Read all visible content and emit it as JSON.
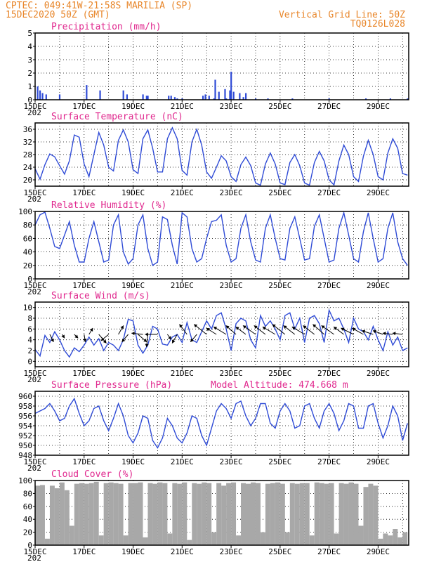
{
  "header": {
    "line1_left": "CPTEC:  049:41W-21:58S  MARILIA (SP)",
    "line2_left": "15DEC2020 50Z (GMT)",
    "line1_right": "Vertical Grid Line: 50Z",
    "line2_right": "TQ0126L028"
  },
  "colors": {
    "series": "#2f4bd6",
    "title": "#e0288e",
    "header": "#e8862a",
    "cloud": "#a8a8a8"
  },
  "chart_data": [
    {
      "type": "bar",
      "title": "Precipitation (mm/h)",
      "ylim": [
        0,
        5
      ],
      "yticks": [
        0,
        1,
        2,
        3,
        4,
        5
      ],
      "x_start_label": "15DEC",
      "x_cut_label": "202",
      "xticks": [
        "15DEC",
        "17DEC",
        "19DEC",
        "21DEC",
        "23DEC",
        "25DEC",
        "27DEC",
        "29DEC"
      ],
      "x": [
        0.1,
        0.2,
        0.3,
        0.45,
        1.0,
        2.1,
        2.65,
        3.6,
        3.75,
        4.4,
        4.55,
        4.6,
        5.45,
        5.55,
        5.7,
        5.8,
        6.0,
        6.85,
        6.95,
        7.1,
        7.3,
        7.35,
        7.5,
        7.75,
        7.8,
        7.95,
        8.0,
        8.1,
        8.35,
        8.5,
        8.6,
        9.0,
        9.5,
        10.5,
        12.0,
        13.5,
        14.5,
        15.2
      ],
      "values": [
        1.0,
        0.7,
        0.5,
        0.4,
        0.4,
        1.1,
        0.7,
        0.7,
        0.4,
        0.4,
        0.3,
        0.3,
        0.3,
        0.3,
        0.2,
        0.1,
        0.1,
        0.3,
        0.4,
        0.3,
        0.1,
        1.5,
        0.6,
        0.8,
        0.1,
        0.7,
        2.1,
        0.6,
        0.5,
        0.2,
        0.5,
        0.1,
        0.1,
        0.1,
        0.1,
        0.1,
        0.1,
        0.1
      ]
    },
    {
      "type": "line",
      "title": "Surface Temperature (nC)",
      "ylim": [
        18,
        38
      ],
      "yticks": [
        20,
        24,
        28,
        32,
        36
      ],
      "x_start_label": "15DEC",
      "x_cut_label": "202",
      "xticks": [
        "15DEC",
        "17DEC",
        "19DEC",
        "21DEC",
        "23DEC",
        "25DEC",
        "27DEC",
        "29DEC"
      ],
      "x": [
        0,
        0.2,
        0.4,
        0.6,
        0.8,
        1.0,
        1.2,
        1.4,
        1.6,
        1.8,
        2.0,
        2.2,
        2.4,
        2.6,
        2.8,
        3.0,
        3.2,
        3.4,
        3.6,
        3.8,
        4.0,
        4.2,
        4.4,
        4.6,
        4.8,
        5.0,
        5.2,
        5.4,
        5.6,
        5.8,
        6.0,
        6.2,
        6.4,
        6.6,
        6.8,
        7.0,
        7.2,
        7.4,
        7.6,
        7.8,
        8.0,
        8.2,
        8.4,
        8.6,
        8.8,
        9.0,
        9.2,
        9.4,
        9.6,
        9.8,
        10.0,
        10.2,
        10.4,
        10.6,
        10.8,
        11.0,
        11.2,
        11.4,
        11.6,
        11.8,
        12.0,
        12.2,
        12.4,
        12.6,
        12.8,
        13.0,
        13.2,
        13.4,
        13.6,
        13.8,
        14.0,
        14.2,
        14.4,
        14.6,
        14.8,
        15.0,
        15.2
      ],
      "values": [
        23.5,
        20.2,
        24.8,
        28.2,
        27.3,
        24.5,
        21.8,
        26.0,
        34.2,
        33.5,
        25.0,
        21.0,
        28.0,
        35.0,
        31.0,
        24.0,
        22.8,
        32.5,
        35.8,
        32.0,
        23.2,
        22.0,
        33.0,
        35.8,
        30.0,
        22.5,
        22.5,
        33.0,
        36.5,
        33.0,
        23.0,
        21.5,
        32.0,
        36.0,
        31.0,
        22.5,
        20.5,
        24.0,
        27.6,
        26.0,
        21.0,
        19.5,
        24.8,
        27.2,
        24.5,
        19.0,
        18.3,
        25.0,
        28.5,
        25.0,
        19.0,
        18.5,
        25.5,
        28.0,
        24.5,
        19.0,
        18.3,
        25.5,
        29.0,
        26.0,
        20.0,
        18.4,
        26.0,
        31.0,
        28.0,
        21.0,
        19.5,
        27.5,
        32.5,
        28.0,
        21.0,
        20.0,
        28.5,
        33.0,
        30.0,
        22.0,
        21.5
      ]
    },
    {
      "type": "line",
      "title": "Relative Humidity (%)",
      "ylim": [
        0,
        100
      ],
      "yticks": [
        0,
        20,
        40,
        60,
        80,
        100
      ],
      "x_start_label": "15DEC",
      "x_cut_label": "202",
      "xticks": [
        "15DEC",
        "17DEC",
        "19DEC",
        "21DEC",
        "23DEC",
        "25DEC",
        "27DEC",
        "29DEC"
      ],
      "x": [
        0,
        0.2,
        0.4,
        0.6,
        0.8,
        1.0,
        1.2,
        1.4,
        1.6,
        1.8,
        2.0,
        2.2,
        2.4,
        2.6,
        2.8,
        3.0,
        3.2,
        3.4,
        3.6,
        3.8,
        4.0,
        4.2,
        4.4,
        4.6,
        4.8,
        5.0,
        5.2,
        5.4,
        5.6,
        5.8,
        6.0,
        6.2,
        6.4,
        6.6,
        6.8,
        7.0,
        7.2,
        7.4,
        7.6,
        7.8,
        8.0,
        8.2,
        8.4,
        8.6,
        8.8,
        9.0,
        9.2,
        9.4,
        9.6,
        9.8,
        10.0,
        10.2,
        10.4,
        10.6,
        10.8,
        11.0,
        11.2,
        11.4,
        11.6,
        11.8,
        12.0,
        12.2,
        12.4,
        12.6,
        12.8,
        13.0,
        13.2,
        13.4,
        13.6,
        13.8,
        14.0,
        14.2,
        14.4,
        14.6,
        14.8,
        15.0,
        15.2
      ],
      "values": [
        80,
        95,
        99,
        75,
        48,
        45,
        65,
        85,
        50,
        25,
        25,
        60,
        85,
        55,
        25,
        28,
        80,
        95,
        40,
        22,
        30,
        80,
        95,
        45,
        20,
        25,
        92,
        88,
        50,
        22,
        98,
        92,
        45,
        25,
        30,
        60,
        85,
        87,
        95,
        50,
        25,
        30,
        75,
        95,
        55,
        28,
        25,
        75,
        95,
        60,
        30,
        28,
        75,
        92,
        60,
        28,
        30,
        78,
        95,
        60,
        25,
        28,
        75,
        98,
        65,
        30,
        25,
        70,
        98,
        60,
        25,
        30,
        75,
        98,
        55,
        30,
        20
      ]
    },
    {
      "type": "line",
      "title": "Surface Wind (m/s)",
      "ylim": [
        -1,
        11
      ],
      "yticks": [
        0,
        2,
        4,
        6,
        8,
        10
      ],
      "x_start_label": "15DEC",
      "x_cut_label": "202",
      "xticks": [
        "15DEC",
        "17DEC",
        "19DEC",
        "21DEC",
        "23DEC",
        "25DEC",
        "27DEC",
        "29DEC"
      ],
      "x": [
        0,
        0.2,
        0.4,
        0.6,
        0.8,
        1.0,
        1.2,
        1.4,
        1.6,
        1.8,
        2.0,
        2.2,
        2.4,
        2.6,
        2.8,
        3.0,
        3.2,
        3.4,
        3.6,
        3.8,
        4.0,
        4.2,
        4.4,
        4.6,
        4.8,
        5.0,
        5.2,
        5.4,
        5.6,
        5.8,
        6.0,
        6.2,
        6.4,
        6.6,
        6.8,
        7.0,
        7.2,
        7.4,
        7.6,
        7.8,
        8.0,
        8.2,
        8.4,
        8.6,
        8.8,
        9.0,
        9.2,
        9.4,
        9.6,
        9.8,
        10.0,
        10.2,
        10.4,
        10.6,
        10.8,
        11.0,
        11.2,
        11.4,
        11.6,
        11.8,
        12.0,
        12.2,
        12.4,
        12.6,
        12.8,
        13.0,
        13.2,
        13.4,
        13.6,
        13.8,
        14.0,
        14.2,
        14.4,
        14.6,
        14.8,
        15.0,
        15.2
      ],
      "values": [
        2.2,
        1.0,
        4.8,
        3.5,
        5.5,
        4.0,
        2.0,
        0.8,
        2.5,
        1.8,
        3.0,
        4.5,
        3.0,
        4.2,
        2.0,
        3.5,
        3.0,
        2.0,
        4.0,
        7.8,
        7.5,
        3.0,
        1.5,
        3.0,
        6.5,
        6.0,
        3.2,
        3.0,
        4.5,
        5.0,
        3.5,
        7.2,
        4.0,
        3.5,
        5.5,
        7.5,
        6.0,
        8.5,
        9.0,
        6.0,
        2.0,
        7.0,
        8.0,
        7.5,
        4.0,
        2.5,
        8.5,
        6.5,
        7.5,
        6.0,
        4.0,
        8.5,
        9.0,
        6.0,
        8.0,
        3.5,
        8.0,
        8.5,
        7.0,
        3.5,
        9.5,
        7.5,
        8.0,
        6.0,
        3.5,
        8.0,
        6.0,
        5.5,
        4.0,
        6.5,
        4.0,
        2.0,
        5.5,
        3.0,
        4.5,
        2.0,
        2.5
      ],
      "vectors": [
        {
          "x": 0.6,
          "u": 0.3,
          "v": -0.6
        },
        {
          "x": 1.1,
          "u": 0.2,
          "v": -0.3
        },
        {
          "x": 1.6,
          "u": 0.3,
          "v": -0.3
        },
        {
          "x": 2.0,
          "u": 0.1,
          "v": -0.6
        },
        {
          "x": 2.2,
          "u": 0.3,
          "v": 0.5
        },
        {
          "x": 2.6,
          "u": 0.6,
          "v": -0.7
        },
        {
          "x": 3.0,
          "u": -0.6,
          "v": -0.5
        },
        {
          "x": 3.4,
          "u": 0.4,
          "v": 0.7
        },
        {
          "x": 3.8,
          "u": -0.5,
          "v": -0.6
        },
        {
          "x": 4.2,
          "u": 0.7,
          "v": -0.6
        },
        {
          "x": 4.4,
          "u": -0.9,
          "v": 0.1
        },
        {
          "x": 4.6,
          "u": -0.1,
          "v": -1.0
        },
        {
          "x": 5.0,
          "u": -1.0,
          "v": 0.0
        },
        {
          "x": 5.4,
          "u": 0.3,
          "v": -0.4
        },
        {
          "x": 5.8,
          "u": -0.4,
          "v": -0.7
        },
        {
          "x": 6.2,
          "u": -0.6,
          "v": 0.8
        },
        {
          "x": 6.6,
          "u": -0.5,
          "v": -0.6
        },
        {
          "x": 7.0,
          "u": -1.0,
          "v": 0.8
        },
        {
          "x": 7.4,
          "u": -0.8,
          "v": 0.5
        },
        {
          "x": 7.8,
          "u": -1.0,
          "v": 0.6
        },
        {
          "x": 8.2,
          "u": -0.8,
          "v": 0.7
        },
        {
          "x": 8.6,
          "u": -0.8,
          "v": 0.6
        },
        {
          "x": 9.0,
          "u": -1.0,
          "v": 0.7
        },
        {
          "x": 9.4,
          "u": -0.9,
          "v": 0.7
        },
        {
          "x": 9.8,
          "u": -1.0,
          "v": 0.6
        },
        {
          "x": 10.2,
          "u": -1.0,
          "v": 0.8
        },
        {
          "x": 10.6,
          "u": -0.9,
          "v": 0.7
        },
        {
          "x": 11.0,
          "u": -1.0,
          "v": 0.6
        },
        {
          "x": 11.4,
          "u": -0.9,
          "v": 0.7
        },
        {
          "x": 11.8,
          "u": -0.9,
          "v": 0.8
        },
        {
          "x": 12.2,
          "u": -1.0,
          "v": 0.7
        },
        {
          "x": 12.6,
          "u": -0.8,
          "v": 0.6
        },
        {
          "x": 13.0,
          "u": -1.0,
          "v": 0.5
        },
        {
          "x": 13.4,
          "u": -0.9,
          "v": 0.5
        },
        {
          "x": 13.8,
          "u": -0.9,
          "v": 0.3
        },
        {
          "x": 14.2,
          "u": -0.8,
          "v": 0.3
        },
        {
          "x": 14.6,
          "u": -0.8,
          "v": 0.1
        },
        {
          "x": 15.0,
          "u": -0.8,
          "v": 0.1
        }
      ]
    },
    {
      "type": "line",
      "title": "Surface Pressure (hPa)",
      "extra_label": "Model Altitude: 474.668  m",
      "ylim": [
        948,
        961
      ],
      "yticks": [
        948,
        950,
        952,
        954,
        956,
        958,
        960
      ],
      "x_start_label": "15DEC",
      "x_cut_label": "202",
      "xticks": [
        "15DEC",
        "17DEC",
        "19DEC",
        "21DEC",
        "23DEC",
        "25DEC",
        "27DEC",
        "29DEC"
      ],
      "x": [
        0,
        0.2,
        0.4,
        0.6,
        0.8,
        1.0,
        1.2,
        1.4,
        1.6,
        1.8,
        2.0,
        2.2,
        2.4,
        2.6,
        2.8,
        3.0,
        3.2,
        3.4,
        3.6,
        3.8,
        4.0,
        4.2,
        4.4,
        4.6,
        4.8,
        5.0,
        5.2,
        5.4,
        5.6,
        5.8,
        6.0,
        6.2,
        6.4,
        6.6,
        6.8,
        7.0,
        7.2,
        7.4,
        7.6,
        7.8,
        8.0,
        8.2,
        8.4,
        8.6,
        8.8,
        9.0,
        9.2,
        9.4,
        9.6,
        9.8,
        10.0,
        10.2,
        10.4,
        10.6,
        10.8,
        11.0,
        11.2,
        11.4,
        11.6,
        11.8,
        12.0,
        12.2,
        12.4,
        12.6,
        12.8,
        13.0,
        13.2,
        13.4,
        13.6,
        13.8,
        14.0,
        14.2,
        14.4,
        14.6,
        14.8,
        15.0,
        15.2
      ],
      "values": [
        956.5,
        957.0,
        957.5,
        958.5,
        957.0,
        955.0,
        955.5,
        958.0,
        959.5,
        956.5,
        954.0,
        955.0,
        957.5,
        958.0,
        955.0,
        953.0,
        955.5,
        958.5,
        956.0,
        952.0,
        950.5,
        952.5,
        956.0,
        955.5,
        951.0,
        949.5,
        951.5,
        955.5,
        954.0,
        951.5,
        950.5,
        952.5,
        956.0,
        955.5,
        952.0,
        950.0,
        953.5,
        957.0,
        958.5,
        957.5,
        955.5,
        958.5,
        959.0,
        956.0,
        954.0,
        955.5,
        958.5,
        958.5,
        954.5,
        953.5,
        957.0,
        958.5,
        957.0,
        953.5,
        954.0,
        958.0,
        958.5,
        955.5,
        953.5,
        957.0,
        958.5,
        956.5,
        953.0,
        955.0,
        958.5,
        958.0,
        953.5,
        953.5,
        958.0,
        958.5,
        954.5,
        951.5,
        954.0,
        958.0,
        956.0,
        951.0,
        954.5
      ]
    },
    {
      "type": "bar",
      "title": "Cloud Cover (%)",
      "ylim": [
        0,
        100
      ],
      "yticks": [
        0,
        20,
        40,
        60,
        80,
        100
      ],
      "x_start_label": "15DEC",
      "x_cut_label": "202",
      "xticks": [
        "15DEC",
        "17DEC",
        "19DEC",
        "21DEC",
        "23DEC",
        "25DEC",
        "27DEC",
        "29DEC"
      ],
      "x": [
        0.1,
        0.3,
        0.5,
        0.7,
        0.9,
        1.1,
        1.3,
        1.5,
        1.7,
        1.9,
        2.1,
        2.3,
        2.5,
        2.7,
        2.9,
        3.1,
        3.3,
        3.5,
        3.7,
        3.9,
        4.1,
        4.3,
        4.5,
        4.7,
        4.9,
        5.1,
        5.3,
        5.5,
        5.7,
        5.9,
        6.1,
        6.3,
        6.5,
        6.7,
        6.9,
        7.1,
        7.3,
        7.5,
        7.7,
        7.9,
        8.1,
        8.3,
        8.5,
        8.7,
        8.9,
        9.1,
        9.3,
        9.5,
        9.7,
        9.9,
        10.1,
        10.3,
        10.5,
        10.7,
        10.9,
        11.1,
        11.3,
        11.5,
        11.7,
        11.9,
        12.1,
        12.3,
        12.5,
        12.7,
        12.9,
        13.1,
        13.3,
        13.5,
        13.7,
        13.9,
        14.1,
        14.3,
        14.5,
        14.7,
        14.9,
        15.1
      ],
      "values": [
        92,
        93,
        10,
        92,
        88,
        97,
        85,
        30,
        95,
        96,
        95,
        96,
        98,
        15,
        96,
        97,
        96,
        95,
        15,
        96,
        96,
        97,
        12,
        96,
        95,
        97,
        96,
        18,
        96,
        95,
        97,
        8,
        96,
        95,
        97,
        96,
        20,
        96,
        92,
        96,
        97,
        15,
        96,
        95,
        97,
        96,
        20,
        95,
        96,
        97,
        95,
        20,
        96,
        95,
        96,
        96,
        15,
        97,
        96,
        95,
        96,
        18,
        96,
        95,
        97,
        95,
        30,
        90,
        95,
        92,
        10,
        18,
        15,
        25,
        12,
        20
      ]
    }
  ]
}
